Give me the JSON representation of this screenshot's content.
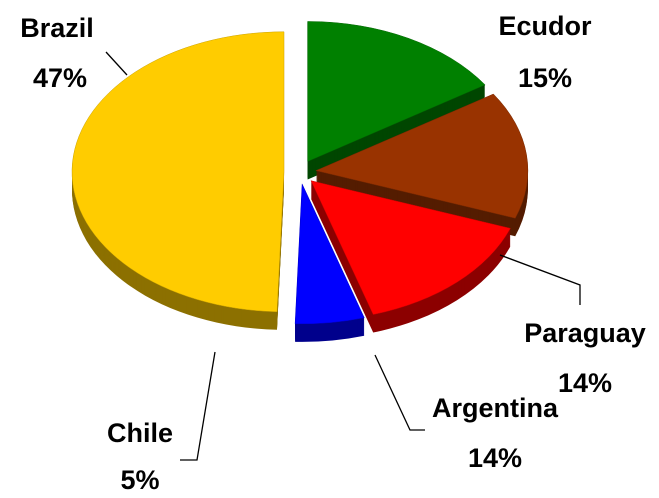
{
  "chart_data": {
    "type": "pie",
    "categories": [
      "Ecudor",
      "Paraguay",
      "Argentina",
      "Chile",
      "Brazil"
    ],
    "values": [
      15,
      14,
      14,
      5,
      47
    ],
    "value_labels": [
      "15%",
      "14%",
      "14%",
      "5%",
      "47%"
    ],
    "colors": [
      "#008000",
      "#993300",
      "#ff0000",
      "#0000ff",
      "#ffcc00"
    ]
  }
}
